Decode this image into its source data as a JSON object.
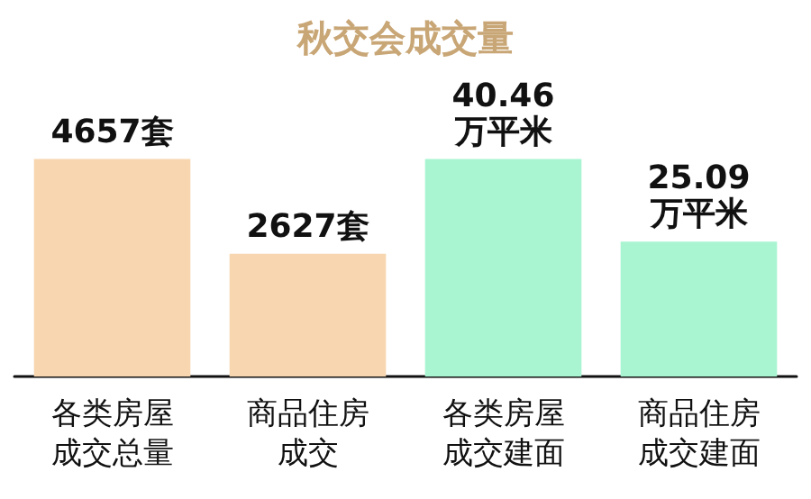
{
  "chart_data": {
    "type": "bar",
    "title": "秋交会成交量",
    "categories": [
      "各类房屋成交总量",
      "商品住房成交",
      "各类房屋成交建面",
      "商品住房成交建面"
    ],
    "series": [
      {
        "color": "#f7d6b0",
        "values": [
          4657,
          2627,
          null,
          null
        ],
        "value_labels": [
          "4657套",
          "2627套",
          null,
          null
        ]
      },
      {
        "color": "#a9f5d2",
        "axis": "y2",
        "values": [
          null,
          null,
          40.46,
          25.09
        ],
        "value_labels": [
          null,
          null,
          "40.46\n万平米",
          "25.09\n万平米"
        ]
      }
    ]
  }
}
